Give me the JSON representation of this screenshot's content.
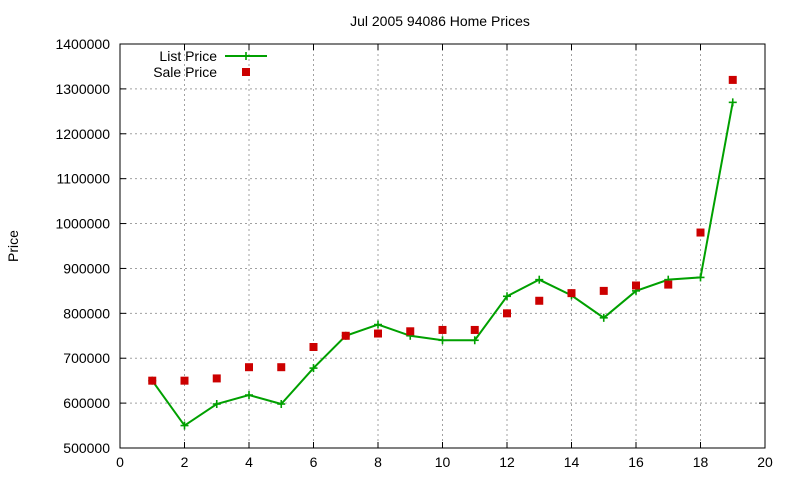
{
  "chart_data": {
    "type": "line",
    "title": "Jul 2005 94086 Home Prices",
    "xlabel": "",
    "ylabel": "Price",
    "xlim": [
      0,
      20
    ],
    "ylim": [
      500000,
      1400000
    ],
    "x_ticks": [
      "0",
      "2",
      "4",
      "6",
      "8",
      "10",
      "12",
      "14",
      "16",
      "18",
      "20"
    ],
    "y_ticks": [
      "500000",
      "600000",
      "700000",
      "800000",
      "900000",
      "1000000",
      "1100000",
      "1200000",
      "1300000",
      "1400000"
    ],
    "grid": true,
    "legend_position": "top-left",
    "series": [
      {
        "name": "List Price",
        "style": "line+cross",
        "color": "#00a000",
        "points": [
          [
            1,
            650000
          ],
          [
            2,
            550000
          ],
          [
            3,
            598000
          ],
          [
            4,
            618000
          ],
          [
            5,
            598000
          ],
          [
            6,
            678000
          ],
          [
            7,
            750000
          ],
          [
            8,
            775000
          ],
          [
            9,
            750000
          ],
          [
            10,
            740000
          ],
          [
            11,
            740000
          ],
          [
            12,
            838000
          ],
          [
            13,
            875000
          ],
          [
            14,
            840000
          ],
          [
            15,
            790000
          ],
          [
            16,
            850000
          ],
          [
            17,
            875000
          ],
          [
            18,
            880000
          ],
          [
            19,
            1270000
          ]
        ]
      },
      {
        "name": "Sale Price",
        "style": "square",
        "color": "#cc0000",
        "points": [
          [
            1,
            650000
          ],
          [
            2,
            650000
          ],
          [
            3,
            655000
          ],
          [
            4,
            680000
          ],
          [
            5,
            680000
          ],
          [
            6,
            725000
          ],
          [
            7,
            750000
          ],
          [
            8,
            755000
          ],
          [
            9,
            760000
          ],
          [
            10,
            763000
          ],
          [
            11,
            763000
          ],
          [
            12,
            800000
          ],
          [
            13,
            828000
          ],
          [
            14,
            845000
          ],
          [
            15,
            850000
          ],
          [
            16,
            862000
          ],
          [
            17,
            864000
          ],
          [
            18,
            980000
          ],
          [
            19,
            1320000
          ]
        ]
      }
    ]
  }
}
